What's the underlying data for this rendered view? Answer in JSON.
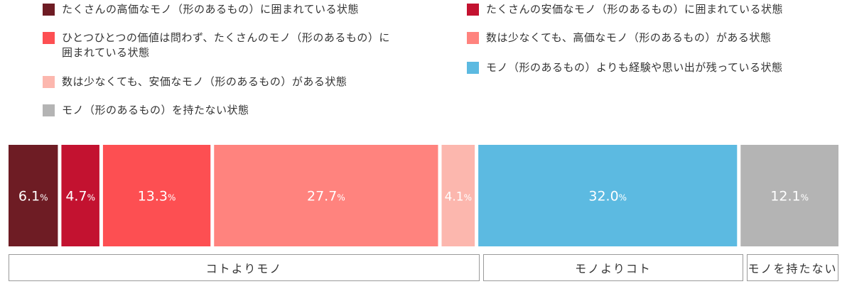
{
  "chart_data": {
    "type": "bar",
    "orientation": "horizontal-stacked-100",
    "unit": "%",
    "categories": [
      "たくさんの高価なモノ（形のあるもの）に囲まれている状態",
      "たくさんの安価なモノ（形のあるもの）に囲まれている状態",
      "ひとつひとつの価値は問わず、たくさんのモノ（形のあるもの）に囲まれている状態",
      "数は少なくても、高価なモノ（形のあるもの）がある状態",
      "数は少なくても、安価なモノ（形のあるもの）がある状態",
      "モノ（形のあるもの）よりも経験や思い出が残っている状態",
      "モノ（形のあるもの）を持たない状態"
    ],
    "values": [
      6.1,
      4.7,
      13.3,
      27.7,
      4.1,
      32.0,
      12.1
    ],
    "value_labels": [
      "6.1",
      "4.7",
      "13.3",
      "27.7",
      "4.1",
      "32.0",
      "12.1"
    ],
    "colors": [
      "#6e1c24",
      "#c31230",
      "#fd4f52",
      "#ff837e",
      "#fcb7ae",
      "#5cbae1",
      "#b4b4b4"
    ],
    "legend_placement": "top",
    "grid": false,
    "groups": [
      {
        "label": "コトよりモノ",
        "members": [
          0,
          1,
          2,
          3,
          4
        ]
      },
      {
        "label": "モノよりコト",
        "members": [
          5
        ]
      },
      {
        "label": "モノを持たない",
        "members": [
          6
        ]
      }
    ]
  },
  "legend": [
    {
      "label_lines": [
        "たくさんの高価なモノ（形のあるもの）に囲まれている状態"
      ],
      "color": "#6e1c24"
    },
    {
      "label_lines": [
        "ひとつひとつの価値は問わず、たくさんのモノ（形のあるもの）に",
        "囲まれている状態"
      ],
      "color": "#fd4f52"
    },
    {
      "label_lines": [
        "数は少なくても、安価なモノ（形のあるもの）がある状態"
      ],
      "color": "#fcb7ae"
    },
    {
      "label_lines": [
        "モノ（形のあるもの）を持たない状態"
      ],
      "color": "#b4b4b4"
    },
    {
      "label_lines": [
        "たくさんの安価なモノ（形のあるもの）に囲まれている状態"
      ],
      "color": "#c31230"
    },
    {
      "label_lines": [
        "数は少なくても、高価なモノ（形のあるもの）がある状態"
      ],
      "color": "#ff837e"
    },
    {
      "label_lines": [
        "モノ（形のあるもの）よりも経験や思い出が残っている状態"
      ],
      "color": "#5cbae1"
    }
  ]
}
